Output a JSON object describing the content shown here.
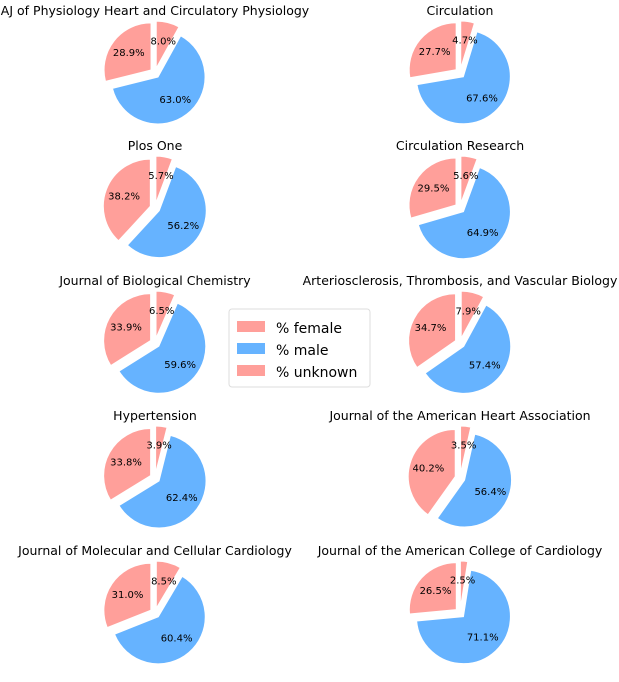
{
  "colors": {
    "female": "#ff9f9a",
    "male": "#66b3ff",
    "unknown": "#ff9f9a"
  },
  "chart_data": {
    "type": "pie",
    "legend": {
      "placement": "center",
      "entries": [
        "% female",
        "% male",
        "% unknown"
      ]
    },
    "charts": [
      {
        "title": "AJ of Physiology Heart and Circulatory Physiology",
        "slices": [
          {
            "label": "% female",
            "value": 28.9,
            "text": "28.9%"
          },
          {
            "label": "% male",
            "value": 63.0,
            "text": "63.0%"
          },
          {
            "label": "% unknown",
            "value": 8.0,
            "text": "8.0%"
          }
        ]
      },
      {
        "title": "Circulation",
        "slices": [
          {
            "label": "% female",
            "value": 27.7,
            "text": "27.7%"
          },
          {
            "label": "% male",
            "value": 67.6,
            "text": "67.6%"
          },
          {
            "label": "% unknown",
            "value": 4.7,
            "text": "4.7%"
          }
        ]
      },
      {
        "title": "Plos One",
        "slices": [
          {
            "label": "% female",
            "value": 38.2,
            "text": "38.2%"
          },
          {
            "label": "% male",
            "value": 56.2,
            "text": "56.2%"
          },
          {
            "label": "% unknown",
            "value": 5.7,
            "text": "5.7%"
          }
        ]
      },
      {
        "title": "Circulation Research",
        "slices": [
          {
            "label": "% female",
            "value": 29.5,
            "text": "29.5%"
          },
          {
            "label": "% male",
            "value": 64.9,
            "text": "64.9%"
          },
          {
            "label": "% unknown",
            "value": 5.6,
            "text": "5.6%"
          }
        ]
      },
      {
        "title": "Journal of Biological Chemistry",
        "slices": [
          {
            "label": "% female",
            "value": 33.9,
            "text": "33.9%"
          },
          {
            "label": "% male",
            "value": 59.6,
            "text": "59.6%"
          },
          {
            "label": "% unknown",
            "value": 6.5,
            "text": "6.5%"
          }
        ]
      },
      {
        "title": "Arteriosclerosis, Thrombosis, and Vascular Biology",
        "slices": [
          {
            "label": "% female",
            "value": 34.7,
            "text": "34.7%"
          },
          {
            "label": "% male",
            "value": 57.4,
            "text": "57.4%"
          },
          {
            "label": "% unknown",
            "value": 7.9,
            "text": "7.9%"
          }
        ]
      },
      {
        "title": "Hypertension",
        "slices": [
          {
            "label": "% female",
            "value": 33.8,
            "text": "33.8%"
          },
          {
            "label": "% male",
            "value": 62.4,
            "text": "62.4%"
          },
          {
            "label": "% unknown",
            "value": 3.9,
            "text": "3.9%"
          }
        ]
      },
      {
        "title": "Journal of the American Heart Association",
        "slices": [
          {
            "label": "% female",
            "value": 40.2,
            "text": "40.2%"
          },
          {
            "label": "% male",
            "value": 56.4,
            "text": "56.4%"
          },
          {
            "label": "% unknown",
            "value": 3.5,
            "text": "3.5%"
          }
        ]
      },
      {
        "title": "Journal of Molecular and Cellular Cardiology",
        "slices": [
          {
            "label": "% female",
            "value": 31.0,
            "text": "31.0%"
          },
          {
            "label": "% male",
            "value": 60.4,
            "text": "60.4%"
          },
          {
            "label": "% unknown",
            "value": 8.5,
            "text": "8.5%"
          }
        ]
      },
      {
        "title": "Journal of the American College of Cardiology",
        "slices": [
          {
            "label": "% female",
            "value": 26.5,
            "text": "26.5%"
          },
          {
            "label": "% male",
            "value": 71.1,
            "text": "71.1%"
          },
          {
            "label": "% unknown",
            "value": 2.5,
            "text": "2.5%"
          }
        ]
      }
    ]
  }
}
